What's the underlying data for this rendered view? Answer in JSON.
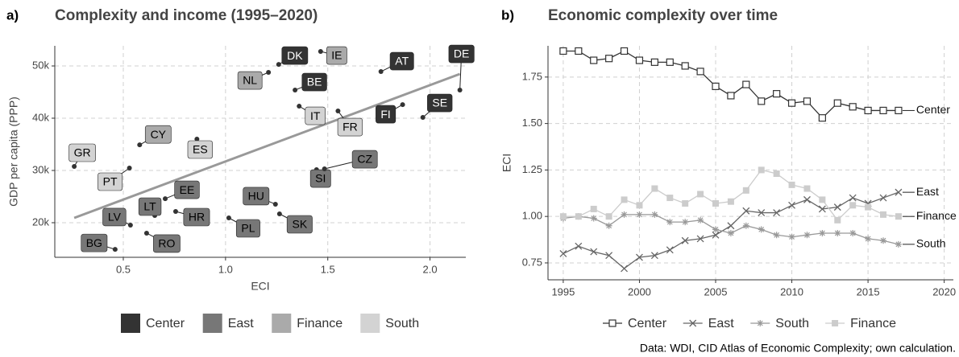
{
  "caption": "Data: WDI, CID Atlas of Economic Complexity; own calculation.",
  "chart_data": [
    {
      "type": "scatter",
      "panel": "a)",
      "title": "Complexity and income (1995–2020)",
      "xlabel": "ECI",
      "ylabel": "GDP per capita (PPP)",
      "xlim": [
        0.165,
        2.175
      ],
      "ylim": [
        13380,
        53850
      ],
      "xticks": [
        0.5,
        {
          "value": 1.0,
          "label": "1.0"
        },
        1.5,
        {
          "value": 2.0,
          "label": "2.0"
        }
      ],
      "yticks": [
        {
          "value": 20000,
          "label": "20k"
        },
        {
          "value": 30000,
          "label": "30k"
        },
        {
          "value": 40000,
          "label": "40k"
        },
        {
          "value": 50000,
          "label": "50k"
        }
      ],
      "grid": true,
      "series": [
        {
          "name": "Center",
          "color": "#333333",
          "text_color": "#ffffff",
          "labels": [
            "DK",
            "BE",
            "AT",
            "FI",
            "SE",
            "DE"
          ],
          "x": [
            1.26,
            1.34,
            1.76,
            1.866,
            1.965,
            2.146
          ],
          "values": [
            50300,
            45380,
            48920,
            42600,
            40150,
            45380
          ]
        },
        {
          "name": "East",
          "color": "#777777",
          "text_color": "#000000",
          "labels": [
            "LV",
            "LT",
            "EE",
            "HR",
            "BG",
            "RO",
            "HU",
            "PL",
            "SK",
            "SI",
            "CZ"
          ],
          "x": [
            0.535,
            0.654,
            0.705,
            0.756,
            0.46,
            0.614,
            1.244,
            1.016,
            1.264,
            1.445,
            1.484
          ],
          "values": [
            19540,
            21380,
            24600,
            22150,
            14900,
            18000,
            23540,
            20920,
            21690,
            30150,
            30300
          ]
        },
        {
          "name": "Finance",
          "color": "#aaaaaa",
          "text_color": "#000000",
          "labels": [
            "CY",
            "NL",
            "IE"
          ],
          "x": [
            0.58,
            1.21,
            1.465
          ],
          "values": [
            34900,
            48770,
            52770
          ]
        },
        {
          "name": "South",
          "color": "#d3d3d3",
          "text_color": "#000000",
          "labels": [
            "GR",
            "PT",
            "ES",
            "IT",
            "FR"
          ],
          "x": [
            0.26,
            0.53,
            0.86,
            1.36,
            1.55
          ],
          "values": [
            30770,
            30460,
            36000,
            42300,
            41380
          ]
        }
      ],
      "trend_line": {
        "color": "#999999",
        "x": [
          0.26,
          2.146
        ],
        "values": [
          20920,
          48460
        ]
      }
    },
    {
      "type": "line",
      "panel": "b)",
      "title": "Economic complexity over time",
      "ylabel": "ECI",
      "x": [
        1995,
        1996,
        1997,
        1998,
        1999,
        2000,
        2001,
        2002,
        2003,
        2004,
        2005,
        2006,
        2007,
        2008,
        2009,
        2010,
        2011,
        2012,
        2013,
        2014,
        2015,
        2016,
        2017
      ],
      "xlim": [
        1994.0,
        2020.6
      ],
      "ylim": [
        0.659,
        1.918
      ],
      "xticks": [
        1995,
        2000,
        2005,
        2010,
        2015,
        2020
      ],
      "yticks": [
        {
          "value": 0.75,
          "label": "0.75"
        },
        {
          "value": 1.0,
          "label": "1.00"
        },
        {
          "value": 1.25,
          "label": "1.25"
        },
        {
          "value": 1.5,
          "label": "1.50"
        },
        {
          "value": 1.75,
          "label": "1.75"
        }
      ],
      "grid": true,
      "series": [
        {
          "name": "Center",
          "color": "#333333",
          "marker": "square-open",
          "values": [
            1.89,
            1.89,
            1.84,
            1.85,
            1.89,
            1.84,
            1.83,
            1.83,
            1.81,
            1.78,
            1.7,
            1.65,
            1.71,
            1.62,
            1.66,
            1.61,
            1.62,
            1.53,
            1.61,
            1.59,
            1.57,
            1.57,
            1.57
          ]
        },
        {
          "name": "East",
          "color": "#666666",
          "marker": "x",
          "values": [
            0.8,
            0.84,
            0.81,
            0.79,
            0.72,
            0.78,
            0.79,
            0.82,
            0.87,
            0.88,
            0.9,
            0.95,
            1.03,
            1.02,
            1.02,
            1.06,
            1.09,
            1.04,
            1.05,
            1.1,
            1.07,
            1.1,
            1.13
          ]
        },
        {
          "name": "South",
          "color": "#999999",
          "marker": "asterisk",
          "values": [
            0.99,
            1.0,
            0.99,
            0.95,
            1.01,
            1.01,
            1.01,
            0.97,
            0.97,
            0.98,
            0.93,
            0.91,
            0.95,
            0.93,
            0.9,
            0.89,
            0.9,
            0.91,
            0.91,
            0.91,
            0.88,
            0.87,
            0.85
          ]
        },
        {
          "name": "Finance",
          "color": "#cccccc",
          "marker": "square",
          "values": [
            1.0,
            1.0,
            1.04,
            1.0,
            1.09,
            1.06,
            1.15,
            1.1,
            1.07,
            1.12,
            1.07,
            1.08,
            1.14,
            1.25,
            1.23,
            1.17,
            1.15,
            1.09,
            0.98,
            1.06,
            1.05,
            1.01,
            1.0
          ]
        }
      ]
    }
  ]
}
